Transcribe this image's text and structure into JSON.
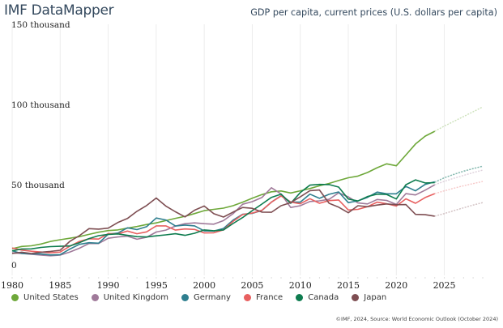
{
  "header": {
    "brand": "IMF DataMapper",
    "indicator": "GDP per capita, current prices (U.S. dollars per capita)"
  },
  "footer": {
    "credit": "©IMF, 2024, Source: World Economic Outlook (October 2024)"
  },
  "chart_data": {
    "type": "line",
    "title": "GDP per capita, current prices (U.S. dollars per capita)",
    "xlabel": "",
    "ylabel": "",
    "units": "thousand U.S. dollars",
    "xlim": [
      1980,
      2029
    ],
    "ylim": [
      0,
      150
    ],
    "last_actual_year": 2024,
    "grid": "vertical",
    "legend_position": "bottom",
    "y_ticks": [
      {
        "value": 0,
        "label": "0"
      },
      {
        "value": 50,
        "label": "50 thousand"
      },
      {
        "value": 100,
        "label": "100 thousand"
      },
      {
        "value": 150,
        "label": "150 thousand"
      }
    ],
    "x_ticks": [
      1980,
      1985,
      1990,
      1995,
      2000,
      2005,
      2010,
      2015,
      2020,
      2025
    ],
    "x": [
      1980,
      1981,
      1982,
      1983,
      1984,
      1985,
      1986,
      1987,
      1988,
      1989,
      1990,
      1991,
      1992,
      1993,
      1994,
      1995,
      1996,
      1997,
      1998,
      1999,
      2000,
      2001,
      2002,
      2003,
      2004,
      2005,
      2006,
      2007,
      2008,
      2009,
      2010,
      2011,
      2012,
      2013,
      2014,
      2015,
      2016,
      2017,
      2018,
      2019,
      2020,
      2021,
      2022,
      2023,
      2024,
      2025,
      2026,
      2027,
      2028,
      2029
    ],
    "series": [
      {
        "name": "United States",
        "color": "#6ea83a",
        "values": [
          12.6,
          14.0,
          14.4,
          15.5,
          17.1,
          18.2,
          19.1,
          20.1,
          21.5,
          22.9,
          23.9,
          24.3,
          25.4,
          26.4,
          27.7,
          28.7,
          30.1,
          31.5,
          32.8,
          34.5,
          36.3,
          37.1,
          37.9,
          39.4,
          41.6,
          44.1,
          46.3,
          48.1,
          48.6,
          47.3,
          48.7,
          50.1,
          51.8,
          53.3,
          55.1,
          56.8,
          57.9,
          60.1,
          63.1,
          65.5,
          64.3,
          71.0,
          77.9,
          82.8,
          85.8,
          89.1,
          92.0,
          95.0,
          98.0,
          101.0
        ]
      },
      {
        "name": "United Kingdom",
        "color": "#a07a9a",
        "values": [
          10.0,
          9.6,
          9.1,
          8.6,
          8.2,
          8.6,
          10.5,
          12.9,
          15.8,
          15.8,
          19.1,
          19.9,
          20.4,
          18.5,
          19.7,
          23.0,
          24.2,
          26.7,
          28.2,
          28.7,
          28.2,
          27.9,
          30.1,
          34.4,
          40.3,
          41.9,
          44.5,
          50.6,
          46.7,
          38.3,
          39.4,
          42.0,
          42.4,
          43.4,
          47.4,
          44.9,
          41.1,
          40.5,
          43.3,
          42.7,
          40.2,
          46.9,
          46.1,
          49.1,
          52.4,
          54.6,
          56.5,
          58.3,
          60.0,
          61.6
        ]
      },
      {
        "name": "Germany",
        "color": "#2f7f8f",
        "values": [
          11.3,
          9.6,
          9.4,
          9.3,
          8.7,
          8.9,
          12.3,
          15.3,
          16.3,
          16.0,
          21.6,
          22.3,
          25.6,
          24.5,
          26.3,
          31.7,
          30.5,
          26.7,
          27.3,
          26.8,
          23.7,
          23.6,
          25.2,
          30.4,
          34.1,
          34.6,
          36.4,
          41.6,
          45.6,
          41.7,
          41.6,
          46.6,
          44.0,
          46.5,
          48.0,
          41.3,
          42.4,
          44.6,
          47.9,
          46.8,
          46.8,
          51.4,
          48.7,
          52.7,
          54.3,
          56.8,
          58.9,
          60.8,
          62.5,
          64.0
        ]
      },
      {
        "name": "France",
        "color": "#e86060",
        "values": [
          13.1,
          11.7,
          11.0,
          10.5,
          10.0,
          10.5,
          14.1,
          17.1,
          18.8,
          18.6,
          22.0,
          21.8,
          23.6,
          21.9,
          23.1,
          26.8,
          26.8,
          24.2,
          24.9,
          24.6,
          22.4,
          22.5,
          24.3,
          29.6,
          33.9,
          34.8,
          36.5,
          41.6,
          45.5,
          41.6,
          40.6,
          43.8,
          40.9,
          42.6,
          43.0,
          36.7,
          37.1,
          38.8,
          41.6,
          40.6,
          39.2,
          43.7,
          40.9,
          44.5,
          46.9,
          48.7,
          50.3,
          51.8,
          53.2,
          54.5
        ]
      },
      {
        "name": "Canada",
        "color": "#0e7c4f",
        "values": [
          11.2,
          12.4,
          12.5,
          13.4,
          13.9,
          14.1,
          14.3,
          16.3,
          18.9,
          20.7,
          21.5,
          21.8,
          20.9,
          20.1,
          19.9,
          20.6,
          21.2,
          21.9,
          20.9,
          22.2,
          24.3,
          23.8,
          24.3,
          28.3,
          32.0,
          36.3,
          40.4,
          44.6,
          46.6,
          40.9,
          47.6,
          52.2,
          52.7,
          52.6,
          51.0,
          43.6,
          42.3,
          45.1,
          46.6,
          46.4,
          43.6,
          52.5,
          55.5,
          53.6,
          53.8,
          56.8,
          59.0,
          61.0,
          62.6,
          64.1
        ]
      },
      {
        "name": "Japan",
        "color": "#7e4e52",
        "values": [
          9.6,
          10.4,
          9.6,
          10.4,
          10.9,
          11.6,
          17.1,
          20.7,
          25.1,
          24.8,
          25.4,
          28.9,
          31.4,
          35.9,
          39.5,
          44.2,
          39.2,
          35.6,
          32.4,
          36.6,
          39.2,
          34.4,
          32.3,
          35.4,
          38.3,
          37.8,
          35.4,
          35.3,
          39.4,
          41.3,
          44.9,
          48.8,
          49.2,
          40.9,
          38.5,
          35.0,
          39.4,
          38.8,
          39.8,
          40.5,
          40.0,
          40.1,
          34.0,
          33.8,
          32.9,
          34.5,
          36.3,
          38.1,
          39.8,
          41.3
        ]
      }
    ]
  }
}
